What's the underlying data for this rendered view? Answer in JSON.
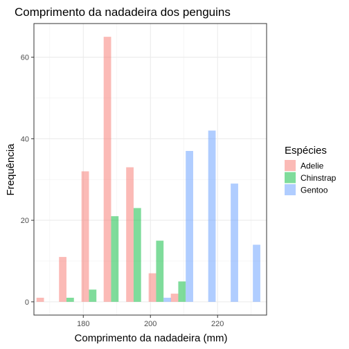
{
  "chart_data": {
    "type": "bar",
    "title": "Comprimento da nadadeira dos penguins",
    "xlabel": "Comprimento da nadadeira (mm)",
    "ylabel": "Frequência",
    "xlim": [
      165.3,
      234.6
    ],
    "ylim": [
      -3.25,
      68.25
    ],
    "x_ticks": [
      180,
      200,
      220
    ],
    "y_ticks": [
      0,
      20,
      40,
      60
    ],
    "grid": true,
    "bin_width": 6.67,
    "bar_width": 2.22,
    "series": [
      {
        "name": "Adelie",
        "color": "#F8766D",
        "x": [
          169.4,
          176.1,
          182.8,
          189.4,
          196.1,
          202.8,
          209.4
        ],
        "values": [
          1,
          11,
          32,
          65,
          33,
          7,
          2
        ]
      },
      {
        "name": "Chinstrap",
        "color": "#00BA38",
        "x": [
          176.1,
          182.8,
          189.4,
          196.1,
          202.8,
          209.4
        ],
        "values": [
          1,
          3,
          21,
          23,
          15,
          5
        ]
      },
      {
        "name": "Gentoo",
        "color": "#619CFF",
        "x": [
          202.8,
          209.4,
          216.1,
          222.8,
          229.4
        ],
        "values": [
          1,
          37,
          42,
          29,
          14
        ]
      }
    ],
    "legend": {
      "title": "Espécies",
      "position": "right"
    }
  }
}
